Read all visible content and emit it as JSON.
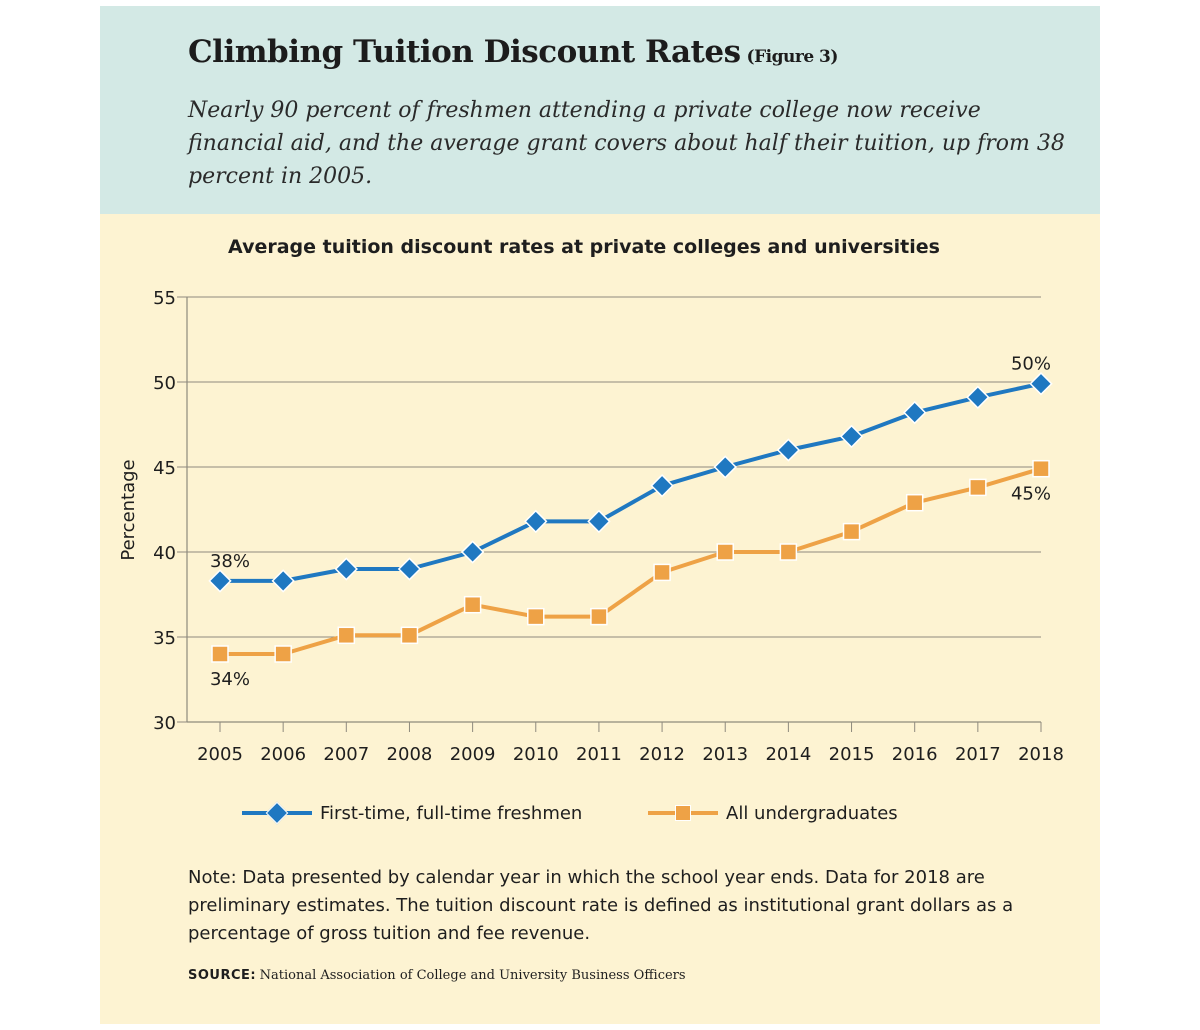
{
  "header": {
    "title": "Climbing Tuition Discount Rates",
    "figure_tag": "(Figure 3)",
    "subtitle": "Nearly 90 percent of freshmen attending a private college now receive financial aid, and the average grant covers about half their tuition, up from 38 percent in 2005."
  },
  "chart_data": {
    "type": "line",
    "title": "Average tuition discount rates at private colleges and universities",
    "xlabel": "",
    "ylabel": "Percentage",
    "ylim": [
      30,
      55
    ],
    "yticks": [
      30,
      35,
      40,
      45,
      50,
      55
    ],
    "grid": true,
    "legend_position": "bottom",
    "x": [
      "2005",
      "2006",
      "2007",
      "2008",
      "2009",
      "2010",
      "2011",
      "2012",
      "2013",
      "2014",
      "2015",
      "2016",
      "2017",
      "2018"
    ],
    "series": [
      {
        "name": "First-time, full-time freshmen",
        "color": "#1f78c1",
        "marker": "diamond",
        "values": [
          38.3,
          38.3,
          39.0,
          39.0,
          40.0,
          41.8,
          41.8,
          43.9,
          45.0,
          46.0,
          46.8,
          48.2,
          49.1,
          49.9
        ]
      },
      {
        "name": "All undergraduates",
        "color": "#eea246",
        "marker": "square",
        "values": [
          34.0,
          34.0,
          35.1,
          35.1,
          36.9,
          36.2,
          36.2,
          38.8,
          40.0,
          40.0,
          41.2,
          42.9,
          43.8,
          44.9
        ]
      }
    ],
    "annotations": [
      {
        "text": "38%",
        "series": 0,
        "index": 0
      },
      {
        "text": "50%",
        "series": 0,
        "index": 13
      },
      {
        "text": "34%",
        "series": 1,
        "index": 0
      },
      {
        "text": "45%",
        "series": 1,
        "index": 13
      }
    ]
  },
  "note": "Note: Data presented by calendar year in which the school year ends. Data for 2018 are preliminary estimates. The tuition discount rate is defined as institutional grant dollars as a percentage of gross tuition and fee revenue.",
  "source": {
    "label": "SOURCE:",
    "text": "National Association of College and University Business Officers"
  }
}
